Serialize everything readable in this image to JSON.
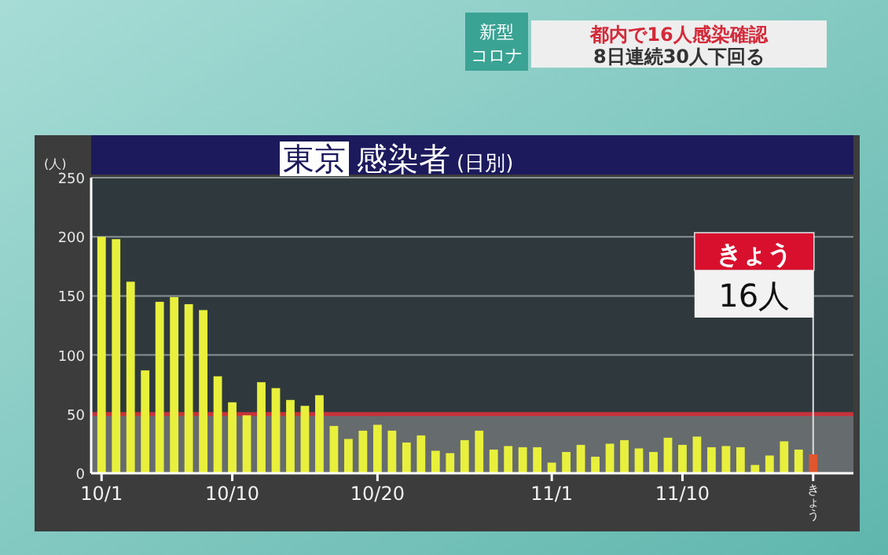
{
  "chart_data": {
    "type": "bar",
    "title": "東京 感染者",
    "subtitle": "(日別)",
    "ylabel": "(人)",
    "categories": [
      "10/1",
      null,
      null,
      null,
      null,
      null,
      null,
      null,
      null,
      "10/10",
      null,
      null,
      null,
      null,
      null,
      null,
      null,
      null,
      null,
      "10/20",
      null,
      null,
      null,
      null,
      null,
      null,
      null,
      null,
      null,
      null,
      null,
      "11/1",
      null,
      null,
      null,
      null,
      null,
      null,
      null,
      null,
      "11/10",
      null,
      null,
      null,
      null,
      null,
      null,
      null,
      null,
      "きょう"
    ],
    "values": [
      200,
      198,
      162,
      87,
      145,
      149,
      143,
      138,
      82,
      60,
      49,
      77,
      72,
      62,
      57,
      66,
      40,
      29,
      36,
      41,
      36,
      26,
      32,
      19,
      17,
      28,
      36,
      20,
      23,
      22,
      22,
      9,
      18,
      24,
      14,
      25,
      28,
      21,
      18,
      30,
      24,
      31,
      22,
      23,
      22,
      7,
      15,
      27,
      20,
      16
    ],
    "colors": [
      "#e8f03c",
      "#e8f03c",
      "#e8f03c",
      "#e8f03c",
      "#e8f03c",
      "#e8f03c",
      "#e8f03c",
      "#e8f03c",
      "#e8f03c",
      "#e8f03c",
      "#e8f03c",
      "#e8f03c",
      "#e8f03c",
      "#e8f03c",
      "#e8f03c",
      "#e8f03c",
      "#e8f03c",
      "#e8f03c",
      "#e8f03c",
      "#e8f03c",
      "#e8f03c",
      "#e8f03c",
      "#e8f03c",
      "#e8f03c",
      "#e8f03c",
      "#e8f03c",
      "#e8f03c",
      "#e8f03c",
      "#e8f03c",
      "#e8f03c",
      "#e8f03c",
      "#e8f03c",
      "#e8f03c",
      "#e8f03c",
      "#e8f03c",
      "#e8f03c",
      "#e8f03c",
      "#e8f03c",
      "#e8f03c",
      "#e8f03c",
      "#e8f03c",
      "#e8f03c",
      "#e8f03c",
      "#e8f03c",
      "#e8f03c",
      "#e8f03c",
      "#e8f03c",
      "#e8f03c",
      "#e8f03c",
      "#e0562e"
    ],
    "ylim": [
      0,
      250
    ],
    "yticks": [
      0,
      50,
      100,
      150,
      200,
      250
    ],
    "grid": "y",
    "ref_lines": [
      {
        "axis": "y",
        "value": 50,
        "color": "#c8323c"
      }
    ],
    "bands": [
      {
        "axis": "y",
        "from": 0,
        "to": 50,
        "color": "#666b6e"
      }
    ],
    "annotations": [
      "新型",
      "コロナ",
      "都内で16人感染確認",
      "8日連続30人下回る",
      "きょう",
      {
        "text": "16人",
        "x": "きょう",
        "y": 16
      }
    ]
  }
}
